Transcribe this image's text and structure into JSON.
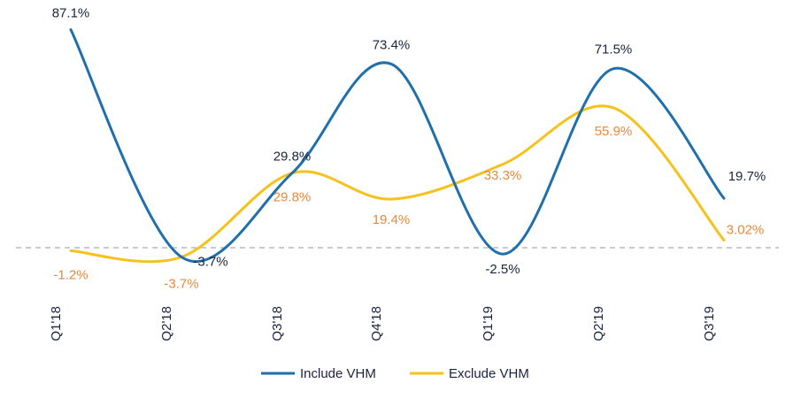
{
  "chart_data": {
    "type": "line",
    "title": "",
    "xlabel": "",
    "ylabel": "",
    "categories": [
      "Q1'18",
      "Q2'18",
      "Q3'18",
      "Q4'18",
      "Q1'19",
      "Q2'19",
      "Q3'19"
    ],
    "ylim": [
      -10,
      90
    ],
    "grid": false,
    "baseline": 0,
    "legend_position": "bottom",
    "series": [
      {
        "name": "Include VHM",
        "color": "#1f6fad",
        "label_color": "#1a2340",
        "values": [
          87.1,
          -3.7,
          29.8,
          73.4,
          -2.5,
          71.5,
          19.7
        ],
        "labels": [
          "87.1%",
          "-3.7%",
          "29.8%",
          "73.4%",
          "-2.5%",
          "71.5%",
          "19.7%"
        ]
      },
      {
        "name": "Exclude VHM",
        "color": "#f5c21b",
        "label_color": "#e8883a",
        "values": [
          -1.2,
          -3.7,
          29.8,
          19.4,
          33.3,
          55.9,
          3.02
        ],
        "labels": [
          "-1.2%",
          "-3.7%",
          "29.8%",
          "19.4%",
          "33.3%",
          "55.9%",
          "3.02%"
        ]
      }
    ]
  }
}
